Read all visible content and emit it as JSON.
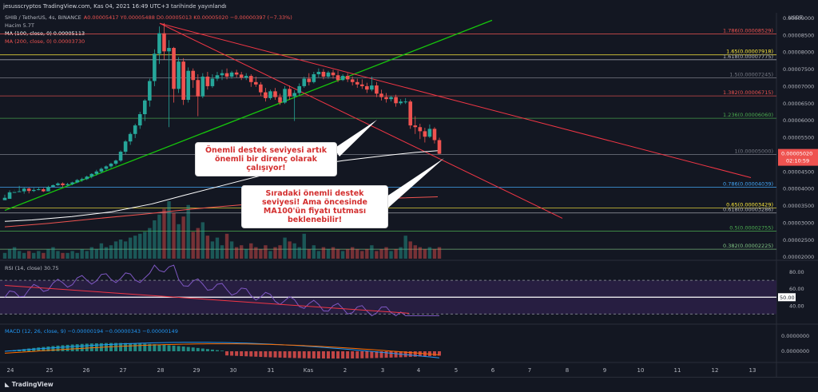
{
  "header": {
    "title": "jesusscryptos TradingView.com, Kas 04, 2021 16:49 UTC+3 tarihinde yayınlandı"
  },
  "legend_main": {
    "symbol": "SHIB / TetherUS, 4s, BINANCE",
    "ohlc": "A0.00005417  Y0.00005488  D0.00005013  K0.00005020  −0.00000397 (−7.33%)",
    "volume": "Hacim  5.7T",
    "ma100": "MA (100, close, 0)  0.00005113",
    "ma200": "MA (200, close, 0)  0.00003730"
  },
  "legend_rsi": "RSI (14, close)  30.75",
  "legend_macd": "MACD (12, 26, close, 9)  −0.00000194  −0.00000343  −0.00000149",
  "annotations": {
    "box1": "Önemli destek seviyesi artık önemli bir direnç olarak çalışıyor!",
    "box2": "Sıradaki önemli destek seviyesi! Ama öncesinde MA100'ün fiyatı tutması beklenebilir!"
  },
  "brand": "TradingView",
  "colors": {
    "bg": "#131722",
    "up": "#26a69a",
    "down": "#ef5350",
    "green_line": "#16c60c",
    "trend_red": "#f23645",
    "white": "#ffffff",
    "rsi_band": "#2a1f45",
    "rsi_line": "#7e57c2"
  },
  "chart_data": {
    "type": "candlestick",
    "price_axis": {
      "unit": "USDT",
      "ticks": [
        "0.00009000",
        "0.00008500",
        "0.00008000",
        "0.00007500",
        "0.00007000",
        "0.00006500",
        "0.00006000",
        "0.00005500",
        "0.00005000",
        "0.00004500",
        "0.00004000",
        "0.00003500",
        "0.00003000",
        "0.00002500",
        "0.00002000"
      ],
      "range": [
        1.9e-05,
        9.15e-05
      ],
      "last_price": "0.00005020",
      "countdown": "02:10:59"
    },
    "x_axis": {
      "labels": [
        "24",
        "25",
        "26",
        "27",
        "28",
        "29",
        "30",
        "31",
        "Kas",
        "2",
        "3",
        "4",
        "5",
        "6",
        "7",
        "8",
        "9",
        "10",
        "11",
        "12",
        "13"
      ]
    },
    "fib_levels": [
      {
        "label": "1.786(0.00008529)",
        "value": 8.529e-05,
        "color": "#ef5350"
      },
      {
        "label": "1.65(0.00007918)",
        "value": 7.918e-05,
        "color": "#ffeb3b"
      },
      {
        "label": "1.618(0.00007775)",
        "value": 7.775e-05,
        "color": "#b2b5be"
      },
      {
        "label": "1.5(0.00007245)",
        "value": 7.245e-05,
        "color": "#787b86"
      },
      {
        "label": "1.382(0.00006715)",
        "value": 6.715e-05,
        "color": "#ef5350"
      },
      {
        "label": "1.236(0.00006060)",
        "value": 6.06e-05,
        "color": "#4caf50"
      },
      {
        "label": "1(0.00005000)",
        "value": 5e-05,
        "color": "#787b86"
      },
      {
        "label": "0.786(0.00004039)",
        "value": 4.039e-05,
        "color": "#42a5f5"
      },
      {
        "label": "0.65(0.00003429)",
        "value": 3.429e-05,
        "color": "#ffeb3b"
      },
      {
        "label": "0.618(0.00003286)",
        "value": 3.286e-05,
        "color": "#b2b5be"
      },
      {
        "label": "0.5(0.00002755)",
        "value": 2.755e-05,
        "color": "#4caf50"
      },
      {
        "label": "0.382(0.00002225)",
        "value": 2.225e-05,
        "color": "#81c784"
      }
    ],
    "candles": [
      [
        3.66e-05,
        3.82e-05,
        3.73e-05,
        3.7e-05
      ],
      [
        3.7e-05,
        3.95e-05,
        3.89e-05,
        3.86e-05
      ],
      [
        3.89e-05,
        3.96e-05,
        3.9e-05,
        3.95e-05
      ],
      [
        3.9e-05,
        4.08e-05,
        3.92e-05,
        3.9e-05
      ],
      [
        3.92e-05,
        4.05e-05,
        4e-05,
        3.85e-05
      ],
      [
        4e-05,
        4.03e-05,
        3.93e-05,
        3.86e-05
      ],
      [
        3.93e-05,
        4.02e-05,
        3.96e-05,
        3.9e-05
      ],
      [
        3.96e-05,
        4.05e-05,
        3.98e-05,
        3.95e-05
      ],
      [
        3.98e-05,
        4.02e-05,
        3.92e-05,
        3.9e-05
      ],
      [
        3.92e-05,
        4.08e-05,
        4.05e-05,
        3.92e-05
      ],
      [
        4.05e-05,
        4.12e-05,
        4.1e-05,
        4.05e-05
      ],
      [
        4.1e-05,
        4.18e-05,
        4.15e-05,
        4.08e-05
      ],
      [
        4.15e-05,
        4.18e-05,
        4.1e-05,
        4.04e-05
      ],
      [
        4.1e-05,
        4.17e-05,
        4.13e-05,
        4.08e-05
      ],
      [
        4.13e-05,
        4.2e-05,
        4.18e-05,
        4.1e-05
      ],
      [
        4.18e-05,
        4.28e-05,
        4.25e-05,
        4.16e-05
      ],
      [
        4.25e-05,
        4.32e-05,
        4.28e-05,
        4.2e-05
      ],
      [
        4.28e-05,
        4.38e-05,
        4.35e-05,
        4.25e-05
      ],
      [
        4.35e-05,
        4.45e-05,
        4.43e-05,
        4.3e-05
      ],
      [
        4.43e-05,
        4.55e-05,
        4.5e-05,
        4.38e-05
      ],
      [
        4.5e-05,
        4.62e-05,
        4.58e-05,
        4.45e-05
      ],
      [
        4.58e-05,
        4.68e-05,
        4.65e-05,
        4.53e-05
      ],
      [
        4.65e-05,
        4.76e-05,
        4.73e-05,
        4.6e-05
      ],
      [
        4.73e-05,
        4.85e-05,
        4.82e-05,
        4.68e-05
      ],
      [
        4.82e-05,
        5.12e-05,
        5.08e-05,
        4.78e-05
      ],
      [
        5.08e-05,
        5.42e-05,
        5.38e-05,
        5e-05
      ],
      [
        5.38e-05,
        5.65e-05,
        5.6e-05,
        5.28e-05
      ],
      [
        5.6e-05,
        5.9e-05,
        5.85e-05,
        5.48e-05
      ],
      [
        5.85e-05,
        6.25e-05,
        6.18e-05,
        5.75e-05
      ],
      [
        6.18e-05,
        6.62e-05,
        6.58e-05,
        5.98e-05
      ],
      [
        6.58e-05,
        7.22e-05,
        7.15e-05,
        6.4e-05
      ],
      [
        7.15e-05,
        8.08e-05,
        7.95e-05,
        7e-05
      ],
      [
        7.95e-05,
        8.75e-05,
        8.55e-05,
        7.65e-05
      ],
      [
        8.55e-05,
        8.85e-05,
        8.02e-05,
        7.78e-05
      ],
      [
        8.02e-05,
        8.35e-05,
        8.12e-05,
        5.8e-05
      ],
      [
        8.12e-05,
        8.15e-05,
        6.92e-05,
        6.52e-05
      ],
      [
        6.92e-05,
        7.85e-05,
        7.72e-05,
        6.8e-05
      ],
      [
        7.72e-05,
        7.82e-05,
        6.6e-05,
        6.45e-05
      ],
      [
        6.6e-05,
        7.55e-05,
        7.45e-05,
        6.52e-05
      ],
      [
        7.45e-05,
        7.52e-05,
        7.18e-05,
        6.95e-05
      ],
      [
        7.18e-05,
        7.35e-05,
        6.7e-05,
        6.12e-05
      ],
      [
        6.7e-05,
        7.38e-05,
        7.28e-05,
        6.65e-05
      ],
      [
        7.28e-05,
        7.42e-05,
        7e-05,
        6.9e-05
      ],
      [
        7e-05,
        7.35e-05,
        7.22e-05,
        6.95e-05
      ],
      [
        7.22e-05,
        7.42e-05,
        7.32e-05,
        7.15e-05
      ],
      [
        7.32e-05,
        7.48e-05,
        7.38e-05,
        7.18e-05
      ],
      [
        7.38e-05,
        7.52e-05,
        7.28e-05,
        7.2e-05
      ],
      [
        7.28e-05,
        7.45e-05,
        7.4e-05,
        7.22e-05
      ],
      [
        7.4e-05,
        7.48e-05,
        7.34e-05,
        7.25e-05
      ],
      [
        7.34e-05,
        7.42e-05,
        7.25e-05,
        7.18e-05
      ],
      [
        7.25e-05,
        7.38e-05,
        7.3e-05,
        7.18e-05
      ],
      [
        7.3e-05,
        7.35e-05,
        7.12e-05,
        6.98e-05
      ],
      [
        7.12e-05,
        7.28e-05,
        7.05e-05,
        6.98e-05
      ],
      [
        7.05e-05,
        7.12e-05,
        6.82e-05,
        6.72e-05
      ],
      [
        6.82e-05,
        6.95e-05,
        6.65e-05,
        6.55e-05
      ],
      [
        6.65e-05,
        6.9e-05,
        6.85e-05,
        6.6e-05
      ],
      [
        6.85e-05,
        6.95e-05,
        6.68e-05,
        6.6e-05
      ],
      [
        6.68e-05,
        6.78e-05,
        6.52e-05,
        6.45e-05
      ],
      [
        6.52e-05,
        7e-05,
        6.92e-05,
        6.48e-05
      ],
      [
        6.92e-05,
        7.02e-05,
        6.7e-05,
        6.6e-05
      ],
      [
        6.7e-05,
        6.88e-05,
        6.8e-05,
        5.98e-05
      ],
      [
        6.8e-05,
        7.08e-05,
        7e-05,
        6.72e-05
      ],
      [
        7e-05,
        7.28e-05,
        7.22e-05,
        6.95e-05
      ],
      [
        7.22e-05,
        7.38e-05,
        7.12e-05,
        7.02e-05
      ],
      [
        7.12e-05,
        7.42e-05,
        7.35e-05,
        7.08e-05
      ],
      [
        7.35e-05,
        7.52e-05,
        7.42e-05,
        7.25e-05
      ],
      [
        7.42e-05,
        7.5e-05,
        7.28e-05,
        7.2e-05
      ],
      [
        7.28e-05,
        7.45e-05,
        7.4e-05,
        7.22e-05
      ],
      [
        7.4e-05,
        7.48e-05,
        7.32e-05,
        7.22e-05
      ],
      [
        7.32e-05,
        7.45e-05,
        7.18e-05,
        7.12e-05
      ],
      [
        7.18e-05,
        7.35e-05,
        7.3e-05,
        7.15e-05
      ],
      [
        7.3e-05,
        7.38e-05,
        7.2e-05,
        7.12e-05
      ],
      [
        7.2e-05,
        7.28e-05,
        7.12e-05,
        7.02e-05
      ],
      [
        7.12e-05,
        7.22e-05,
        7.05e-05,
        6.95e-05
      ],
      [
        7.05e-05,
        7.2e-05,
        7e-05,
        6.92e-05
      ],
      [
        7e-05,
        7.1e-05,
        6.9e-05,
        6.8e-05
      ],
      [
        6.9e-05,
        7.28e-05,
        7.02e-05,
        6.85e-05
      ],
      [
        7.02e-05,
        7.12e-05,
        6.78e-05,
        6.68e-05
      ],
      [
        6.78e-05,
        6.9e-05,
        6.68e-05,
        6.58e-05
      ],
      [
        6.68e-05,
        6.8e-05,
        6.62e-05,
        6.52e-05
      ],
      [
        6.62e-05,
        6.72e-05,
        6.68e-05,
        6.55e-05
      ],
      [
        6.68e-05,
        6.75e-05,
        6.5e-05,
        6.4e-05
      ],
      [
        6.5e-05,
        6.62e-05,
        6.55e-05,
        6.45e-05
      ],
      [
        6.55e-05,
        6.65e-05,
        6.55e-05,
        6.48e-05
      ],
      [
        6.55e-05,
        6.6e-05,
        5.85e-05,
        5.75e-05
      ],
      [
        5.85e-05,
        6.12e-05,
        5.8e-05,
        5.6e-05
      ],
      [
        5.8e-05,
        5.9e-05,
        5.68e-05,
        5.45e-05
      ],
      [
        5.68e-05,
        5.78e-05,
        5.52e-05,
        5.35e-05
      ],
      [
        5.52e-05,
        5.88e-05,
        5.75e-05,
        5.48e-05
      ],
      [
        5.75e-05,
        5.8e-05,
        5.42e-05,
        5.32e-05
      ],
      [
        5.42e-05,
        5.49e-05,
        5.02e-05,
        5.01e-05
      ]
    ],
    "volume": [
      0.3,
      0.5,
      0.6,
      0.4,
      0.3,
      0.4,
      0.3,
      0.4,
      0.3,
      0.5,
      0.6,
      0.4,
      0.3,
      0.3,
      0.4,
      0.3,
      0.5,
      0.4,
      0.6,
      0.5,
      0.8,
      0.6,
      0.7,
      0.9,
      1.0,
      0.9,
      1.1,
      1.2,
      1.3,
      1.4,
      1.6,
      2.0,
      2.3,
      2.6,
      3.0,
      2.4,
      1.8,
      2.2,
      2.8,
      1.4,
      1.6,
      1.9,
      1.2,
      0.9,
      1.1,
      0.7,
      1.3,
      0.9,
      0.6,
      0.7,
      0.5,
      0.8,
      0.6,
      0.5,
      0.7,
      0.4,
      0.6,
      0.7,
      1.1,
      0.9,
      0.8,
      0.6,
      1.3,
      0.5,
      0.7,
      0.4,
      0.6,
      0.5,
      0.6,
      0.5,
      0.4,
      0.5,
      0.6,
      0.5,
      0.4,
      0.5,
      0.7,
      0.4,
      0.5,
      0.6,
      0.4,
      0.5,
      0.6,
      1.2,
      0.9,
      0.7,
      0.6,
      0.5,
      0.6,
      0.5,
      0.6
    ],
    "rsi": {
      "axis_ticks": [
        "80.00",
        "60.00",
        "50.00",
        "40.00"
      ],
      "current": "50.00",
      "value": 30.75
    },
    "macd": {
      "axis_ticks": [
        "0.0000000",
        "0.0000000"
      ]
    }
  }
}
